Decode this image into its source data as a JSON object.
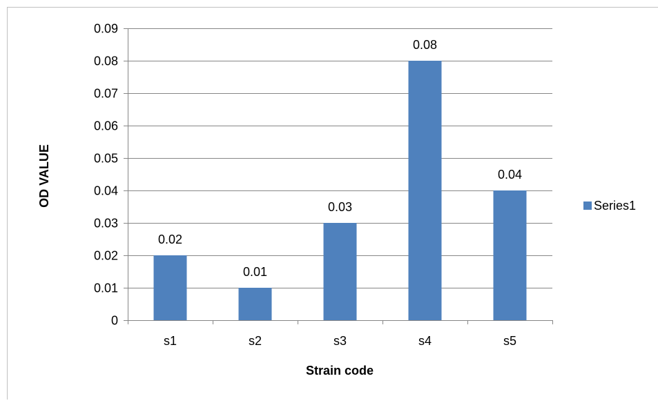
{
  "chart_data": {
    "type": "bar",
    "categories": [
      "s1",
      "s2",
      "s3",
      "s4",
      "s5"
    ],
    "series": [
      {
        "name": "Series1",
        "values": [
          0.02,
          0.01,
          0.03,
          0.08,
          0.04
        ]
      }
    ],
    "data_labels": [
      "0.02",
      "0.01",
      "0.03",
      "0.08",
      "0.04"
    ],
    "y_ticks": [
      "0",
      "0.01",
      "0.02",
      "0.03",
      "0.04",
      "0.05",
      "0.06",
      "0.07",
      "0.08",
      "0.09"
    ],
    "xlabel": "Strain code",
    "ylabel": "OD  VALUE",
    "ylim": [
      0,
      0.09
    ],
    "grid": true,
    "legend_position": "right",
    "bar_color": "#4f81bd",
    "grid_color": "#868686"
  }
}
